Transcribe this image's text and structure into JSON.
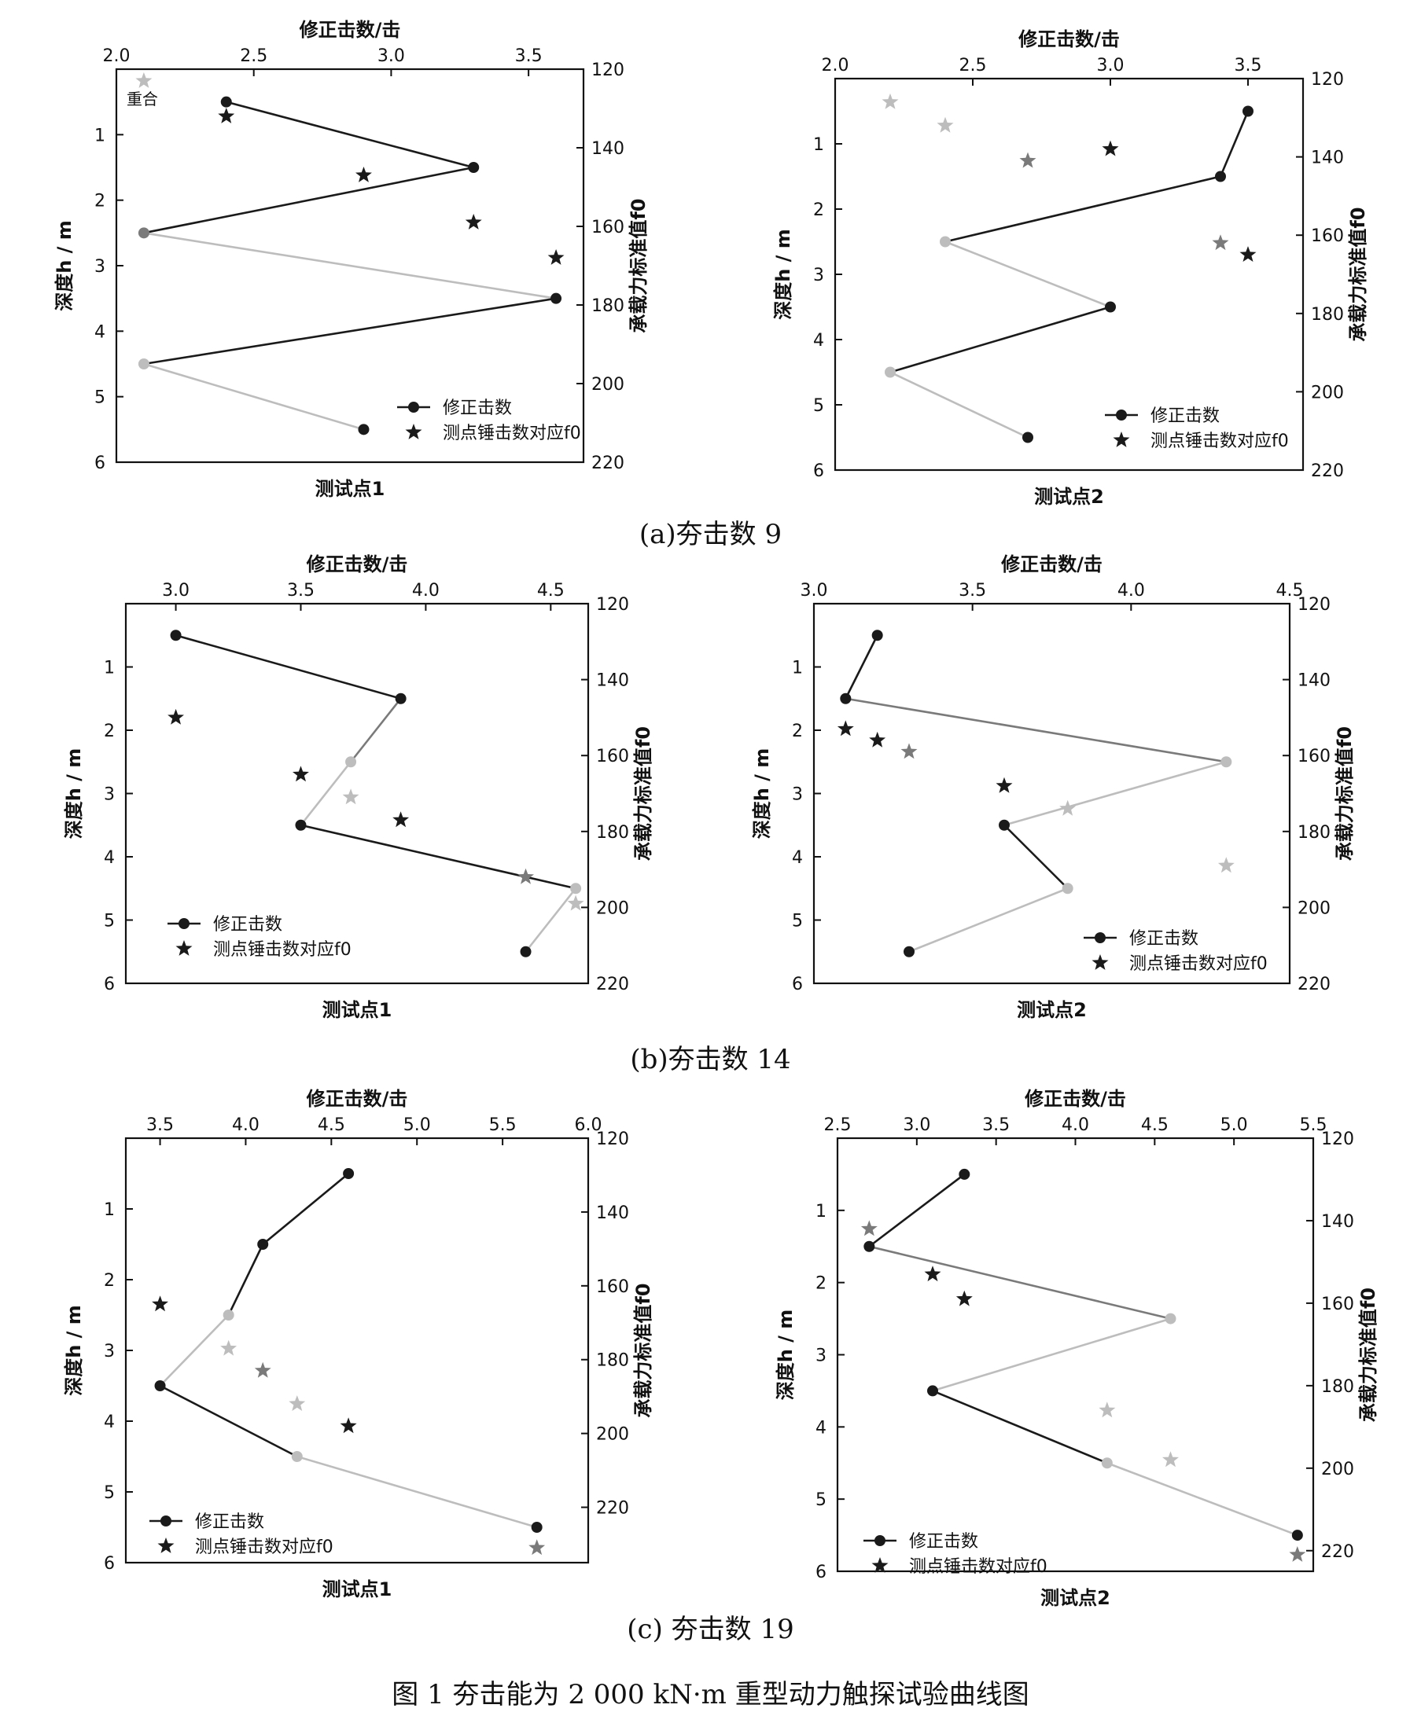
{
  "figure_caption": "图 1 夯击能为 2 000 kN·m 重型动力触探试验曲线图",
  "subcaptions": [
    "(a)夯击数 9",
    "(b)夯击数 14",
    "(c) 夯击数 19"
  ],
  "legend": {
    "line_label": "修正击数",
    "star_label": "测点锤击数对应f0"
  },
  "axis_labels": {
    "top": "修正击数/击",
    "left": "深度h / m",
    "right": "承载力标准值f0"
  },
  "colors": {
    "dark": "#1a1a1a",
    "mid": "#7a7a7a",
    "light": "#bdbdbd"
  },
  "chart_data": [
    {
      "type": "line",
      "title": "测试点1",
      "annotation": "重合",
      "x_label": "修正击数/击",
      "y_label": "深度h / m",
      "y2_label": "承载力标准值f0",
      "xlim": [
        2.0,
        3.7
      ],
      "x_ticks": [
        2.0,
        2.5,
        3.0,
        3.5
      ],
      "ylim": [
        0,
        6
      ],
      "y_ticks": [
        1,
        2,
        3,
        4,
        5,
        6
      ],
      "y2lim": [
        120,
        220
      ],
      "y2_ticks": [
        120,
        140,
        160,
        180,
        200,
        220
      ],
      "x_tick_labels": [
        "2.0",
        "2.5",
        "3.0",
        "3.5"
      ],
      "y_tick_labels": [
        "1",
        "2",
        "3",
        "4",
        "5",
        "6"
      ],
      "y2_tick_labels": [
        "120",
        "140",
        "160",
        "180",
        "200",
        "220"
      ],
      "series": [
        {
          "name": "修正击数",
          "x": [
            2.4,
            3.3,
            2.1,
            3.6,
            2.1,
            2.9
          ],
          "y": [
            0.5,
            1.5,
            2.5,
            3.5,
            4.5,
            5.5
          ]
        },
        {
          "name": "测点锤击数对应f0",
          "x": [
            2.1,
            2.4,
            2.9,
            3.3,
            3.6
          ],
          "y2": [
            123,
            132,
            147,
            159,
            168
          ]
        }
      ]
    },
    {
      "type": "line",
      "title": "测试点2",
      "x_label": "修正击数/击",
      "y_label": "深度h / m",
      "y2_label": "承载力标准值f0",
      "xlim": [
        2.0,
        3.7
      ],
      "x_ticks": [
        2.0,
        2.5,
        3.0,
        3.5
      ],
      "ylim": [
        0,
        6
      ],
      "y_ticks": [
        1,
        2,
        3,
        4,
        5,
        6
      ],
      "y2lim": [
        120,
        220
      ],
      "y2_ticks": [
        120,
        140,
        160,
        180,
        200,
        220
      ],
      "x_tick_labels": [
        "2.0",
        "2.5",
        "3.0",
        "3.5"
      ],
      "y_tick_labels": [
        "1",
        "2",
        "3",
        "4",
        "5",
        "6"
      ],
      "y2_tick_labels": [
        "120",
        "140",
        "160",
        "180",
        "200",
        "220"
      ],
      "series": [
        {
          "name": "修正击数",
          "x": [
            3.5,
            3.4,
            2.4,
            3.0,
            2.2,
            2.7
          ],
          "y": [
            0.5,
            1.5,
            2.5,
            3.5,
            4.5,
            5.5
          ]
        },
        {
          "name": "测点锤击数对应f0",
          "x": [
            2.2,
            2.4,
            2.7,
            3.0,
            3.4,
            3.5
          ],
          "y2": [
            126,
            132,
            141,
            138,
            162,
            165
          ]
        }
      ]
    },
    {
      "type": "line",
      "title": "测试点1",
      "x_label": "修正击数/击",
      "y_label": "深度h / m",
      "y2_label": "承载力标准值f0",
      "xlim": [
        2.8,
        4.65
      ],
      "x_ticks": [
        3.0,
        3.5,
        4.0,
        4.5
      ],
      "ylim": [
        0,
        6
      ],
      "y_ticks": [
        1,
        2,
        3,
        4,
        5,
        6
      ],
      "y2lim": [
        120,
        220
      ],
      "y2_ticks": [
        120,
        140,
        160,
        180,
        200,
        220
      ],
      "x_tick_labels": [
        "3.0",
        "3.5",
        "4.0",
        "4.5"
      ],
      "y_tick_labels": [
        "1",
        "2",
        "3",
        "4",
        "5",
        "6"
      ],
      "y2_tick_labels": [
        "120",
        "140",
        "160",
        "180",
        "200",
        "220"
      ],
      "series": [
        {
          "name": "修正击数",
          "x": [
            3.0,
            3.9,
            3.7,
            3.5,
            4.6,
            4.4
          ],
          "y": [
            0.5,
            1.5,
            2.5,
            3.5,
            4.5,
            5.5
          ]
        },
        {
          "name": "测点锤击数对应f0",
          "x": [
            3.0,
            3.5,
            3.7,
            3.9,
            4.4,
            4.6
          ],
          "y2": [
            150,
            165,
            171,
            177,
            192,
            199
          ]
        }
      ]
    },
    {
      "type": "line",
      "title": "测试点2",
      "x_label": "修正击数/击",
      "y_label": "深度h / m",
      "y2_label": "承载力标准值f0",
      "xlim": [
        3.0,
        4.5
      ],
      "x_ticks": [
        3.0,
        3.5,
        4.0,
        4.5
      ],
      "ylim": [
        0,
        6
      ],
      "y_ticks": [
        1,
        2,
        3,
        4,
        5,
        6
      ],
      "y2lim": [
        120,
        220
      ],
      "y2_ticks": [
        120,
        140,
        160,
        180,
        200,
        220
      ],
      "x_tick_labels": [
        "3.0",
        "3.5",
        "4.0",
        "4.5"
      ],
      "y_tick_labels": [
        "1",
        "2",
        "3",
        "4",
        "5",
        "6"
      ],
      "y2_tick_labels": [
        "120",
        "140",
        "160",
        "180",
        "200",
        "220"
      ],
      "series": [
        {
          "name": "修正击数",
          "x": [
            3.2,
            3.1,
            4.3,
            3.6,
            3.8,
            3.3
          ],
          "y": [
            0.5,
            1.5,
            2.5,
            3.5,
            4.5,
            5.5
          ]
        },
        {
          "name": "测点锤击数对应f0",
          "x": [
            3.1,
            3.2,
            3.3,
            3.6,
            3.8,
            4.3
          ],
          "y2": [
            153,
            156,
            159,
            168,
            174,
            189
          ]
        }
      ]
    },
    {
      "type": "line",
      "title": "测试点1",
      "x_label": "修正击数/击",
      "y_label": "深度h / m",
      "y2_label": "承载力标准值f0",
      "xlim": [
        3.3,
        6.0
      ],
      "x_ticks": [
        3.5,
        4.0,
        4.5,
        5.0,
        5.5,
        6.0
      ],
      "ylim": [
        0,
        6
      ],
      "y_ticks": [
        1,
        2,
        3,
        4,
        5,
        6
      ],
      "y2lim": [
        120,
        235
      ],
      "y2_ticks": [
        120,
        140,
        160,
        180,
        200,
        220
      ],
      "x_tick_labels": [
        "3.5",
        "4.0",
        "4.5",
        "5.0",
        "5.5",
        "6.0"
      ],
      "y_tick_labels": [
        "1",
        "2",
        "3",
        "4",
        "5",
        "6"
      ],
      "y2_tick_labels": [
        "120",
        "140",
        "160",
        "180",
        "200",
        "220"
      ],
      "series": [
        {
          "name": "修正击数",
          "x": [
            4.6,
            4.1,
            3.9,
            3.5,
            4.3,
            5.7
          ],
          "y": [
            0.5,
            1.5,
            2.5,
            3.5,
            4.5,
            5.5
          ]
        },
        {
          "name": "测点锤击数对应f0",
          "x": [
            3.5,
            3.9,
            4.1,
            4.3,
            4.6,
            5.7
          ],
          "y2": [
            165,
            177,
            183,
            192,
            198,
            231
          ]
        }
      ]
    },
    {
      "type": "line",
      "title": "测试点2",
      "x_label": "修正击数/击",
      "y_label": "深度h / m",
      "y2_label": "承载力标准值f0",
      "xlim": [
        2.5,
        5.5
      ],
      "x_ticks": [
        2.5,
        3.0,
        3.5,
        4.0,
        4.5,
        5.0,
        5.5
      ],
      "ylim": [
        0,
        6
      ],
      "y_ticks": [
        1,
        2,
        3,
        4,
        5,
        6
      ],
      "y2lim": [
        120,
        225
      ],
      "y2_ticks": [
        120,
        140,
        160,
        180,
        200,
        220
      ],
      "x_tick_labels": [
        "2.5",
        "3.0",
        "3.5",
        "4.0",
        "4.5",
        "5.0",
        "5.5"
      ],
      "y_tick_labels": [
        "1",
        "2",
        "3",
        "4",
        "5",
        "6"
      ],
      "y2_tick_labels": [
        "120",
        "140",
        "160",
        "180",
        "200",
        "220"
      ],
      "series": [
        {
          "name": "修正击数",
          "x": [
            3.3,
            2.7,
            4.6,
            3.1,
            4.2,
            5.4
          ],
          "y": [
            0.5,
            1.5,
            2.5,
            3.5,
            4.5,
            5.5
          ]
        },
        {
          "name": "测点锤击数对应f0",
          "x": [
            2.7,
            3.1,
            3.3,
            4.2,
            4.6,
            5.4
          ],
          "y2": [
            142,
            153,
            159,
            186,
            198,
            221
          ]
        }
      ]
    }
  ]
}
